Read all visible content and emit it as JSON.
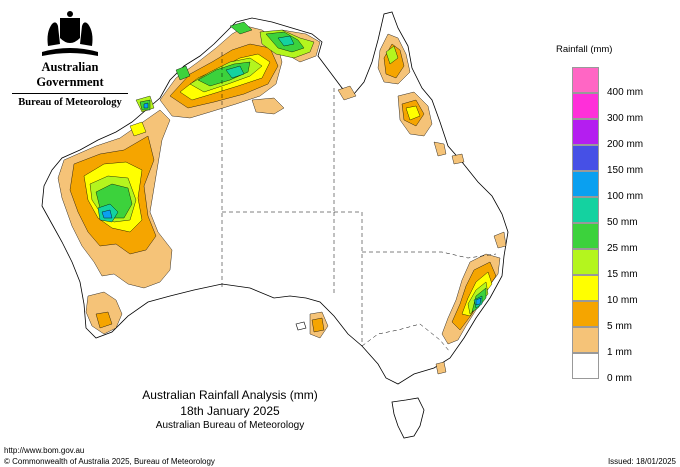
{
  "header": {
    "government": "Australian Government",
    "bureau": "Bureau of Meteorology"
  },
  "legend": {
    "title": "Rainfall (mm)",
    "items": [
      {
        "label": "400 mm",
        "color": "#ff66c4"
      },
      {
        "label": "300 mm",
        "color": "#ff2fd9"
      },
      {
        "label": "200 mm",
        "color": "#b41ef0"
      },
      {
        "label": "150 mm",
        "color": "#4650e6"
      },
      {
        "label": "100 mm",
        "color": "#0aa0f0"
      },
      {
        "label": "50 mm",
        "color": "#14d2a0"
      },
      {
        "label": "25 mm",
        "color": "#3cd23c"
      },
      {
        "label": "15 mm",
        "color": "#b4f51e"
      },
      {
        "label": "10 mm",
        "color": "#ffff00"
      },
      {
        "label": "5 mm",
        "color": "#f5a500"
      },
      {
        "label": "1 mm",
        "color": "#f5c378"
      },
      {
        "label": "0 mm",
        "color": "#ffffff"
      }
    ]
  },
  "caption": {
    "title": "Australian Rainfall Analysis (mm)",
    "date": "18th January 2025",
    "org": "Australian Bureau of Meteorology"
  },
  "footer": {
    "url": "http://www.bom.gov.au",
    "copyright": "© Commonwealth of Australia 2025, Bureau of Meteorology",
    "issued": "Issued: 18/01/2025"
  }
}
